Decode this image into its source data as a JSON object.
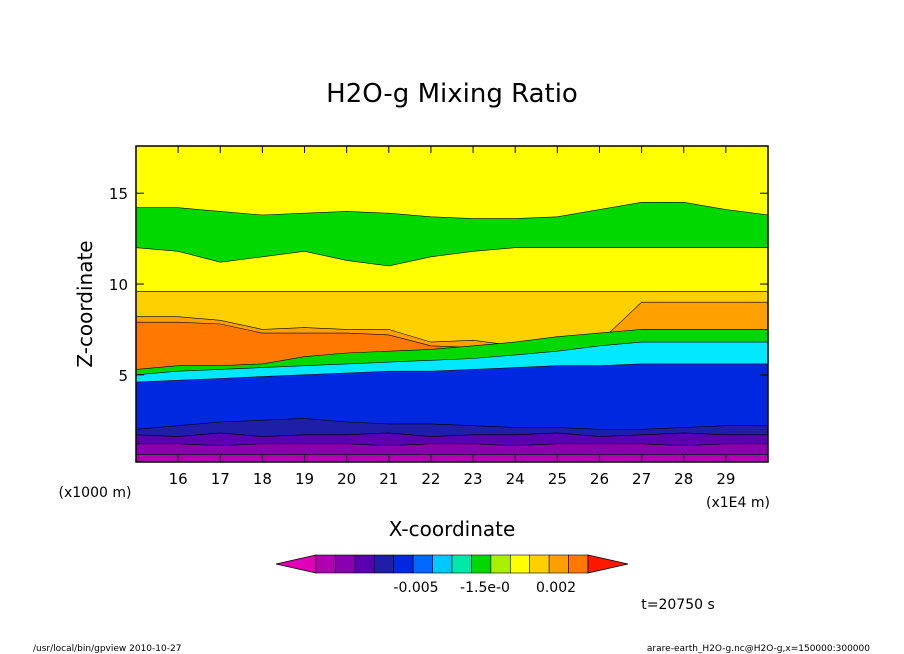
{
  "chart_data": {
    "type": "heatmap",
    "title": "H2O-g Mixing Ratio",
    "xlabel": "X-coordinate",
    "ylabel": "Z-coordinate",
    "x_unit_label": "(x1E4 m)",
    "y_unit_label": "(x1000 m)",
    "xlim": [
      15.0,
      30.0
    ],
    "ylim": [
      0.2,
      17.6
    ],
    "x_ticks": [
      "16",
      "17",
      "18",
      "19",
      "20",
      "21",
      "22",
      "23",
      "24",
      "25",
      "26",
      "27",
      "28",
      "29"
    ],
    "y_ticks": [
      "5",
      "10",
      "15"
    ],
    "legend_labels": [
      "-0.005",
      "-1.5e-0",
      "0.002"
    ],
    "timestamp": "t=20750 s",
    "footer_left": "/usr/local/bin/gpview  2010-10-27",
    "footer_right": "arare-earth_H2O-g.nc@H2O-g,x=150000:300000",
    "colorbar_colors": [
      "#e000b8",
      "#b000b0",
      "#8800b0",
      "#5a00b0",
      "#1e1ea8",
      "#0028e0",
      "#0068ff",
      "#00c8ff",
      "#00e8a8",
      "#00d800",
      "#a8f000",
      "#ffff00",
      "#ffd000",
      "#ffa000",
      "#ff7800",
      "#ff1800"
    ],
    "bands": [
      {
        "zone": "upper-yellow",
        "color": "#ffff00",
        "top_z": [
          17.6,
          17.6,
          17.6,
          17.6,
          17.6,
          17.6,
          17.6,
          17.6,
          17.6,
          17.6,
          17.6,
          17.6,
          17.6,
          17.6,
          17.6,
          17.6
        ]
      },
      {
        "zone": "upper-green",
        "color": "#00d800",
        "top_z": [
          14.2,
          14.2,
          14.0,
          13.8,
          13.9,
          14.0,
          13.9,
          13.7,
          13.6,
          13.6,
          13.7,
          14.1,
          14.5,
          14.5,
          14.1,
          13.8
        ]
      },
      {
        "zone": "mid-yellow",
        "color": "#ffff00",
        "top_z": [
          12.0,
          11.8,
          11.2,
          11.5,
          11.8,
          11.3,
          11.0,
          11.5,
          11.8,
          12.0,
          12.0,
          12.0,
          12.0,
          12.0,
          12.0,
          12.0
        ]
      },
      {
        "zone": "light-orange",
        "color": "#ffd000",
        "top_z": [
          9.6,
          9.6,
          9.6,
          9.6,
          9.6,
          9.6,
          9.6,
          9.6,
          9.6,
          9.6,
          9.6,
          9.6,
          9.6,
          9.6,
          9.6,
          9.6
        ]
      },
      {
        "zone": "orange",
        "color": "#ffa000",
        "top_z": [
          8.2,
          8.2,
          8.0,
          7.5,
          7.6,
          7.5,
          7.5,
          6.8,
          6.9,
          6.6,
          6.9,
          6.8,
          9.0,
          9.0,
          9.0,
          9.0
        ]
      },
      {
        "zone": "dark-orange",
        "color": "#ff7800",
        "top_z": [
          7.9,
          7.9,
          7.8,
          7.3,
          7.3,
          7.3,
          7.2,
          6.6,
          6.5,
          6.3,
          6.4,
          6.6,
          7.5,
          7.5,
          7.5,
          7.5
        ]
      },
      {
        "zone": "green",
        "color": "#00d800",
        "top_z": [
          5.3,
          5.5,
          5.5,
          5.6,
          6.0,
          6.2,
          6.3,
          6.4,
          6.6,
          6.8,
          7.1,
          7.3,
          7.5,
          7.5,
          7.5,
          7.5
        ]
      },
      {
        "zone": "cyan",
        "color": "#00e8ff",
        "top_z": [
          5.0,
          5.2,
          5.3,
          5.4,
          5.5,
          5.6,
          5.7,
          5.8,
          5.9,
          6.1,
          6.3,
          6.6,
          6.8,
          6.8,
          6.8,
          6.8
        ]
      },
      {
        "zone": "blue",
        "color": "#0028e0",
        "top_z": [
          4.6,
          4.7,
          4.8,
          4.9,
          5.0,
          5.1,
          5.2,
          5.2,
          5.3,
          5.4,
          5.5,
          5.5,
          5.6,
          5.6,
          5.6,
          5.6
        ]
      },
      {
        "zone": "dark-blue",
        "color": "#1e1ea8",
        "top_z": [
          2.0,
          2.2,
          2.4,
          2.5,
          2.6,
          2.4,
          2.3,
          2.3,
          2.2,
          2.1,
          2.1,
          2.0,
          2.0,
          2.1,
          2.2,
          2.2
        ]
      },
      {
        "zone": "indigo",
        "color": "#5a00b0",
        "top_z": [
          1.7,
          1.6,
          1.8,
          1.6,
          1.7,
          1.7,
          1.8,
          1.6,
          1.7,
          1.7,
          1.8,
          1.6,
          1.7,
          1.8,
          1.7,
          1.7
        ]
      },
      {
        "zone": "purple",
        "color": "#8800b0",
        "top_z": [
          1.2,
          1.2,
          1.1,
          1.2,
          1.2,
          1.2,
          1.1,
          1.2,
          1.2,
          1.1,
          1.2,
          1.2,
          1.2,
          1.1,
          1.2,
          1.2
        ]
      },
      {
        "zone": "violet",
        "color": "#b000b0",
        "top_z": [
          0.6,
          0.6,
          0.6,
          0.6,
          0.6,
          0.6,
          0.6,
          0.6,
          0.6,
          0.6,
          0.6,
          0.6,
          0.6,
          0.6,
          0.6,
          0.6
        ]
      }
    ],
    "band_x": [
      15,
      16,
      17,
      18,
      19,
      20,
      21,
      22,
      23,
      24,
      25,
      26,
      27,
      28,
      29,
      30
    ]
  }
}
